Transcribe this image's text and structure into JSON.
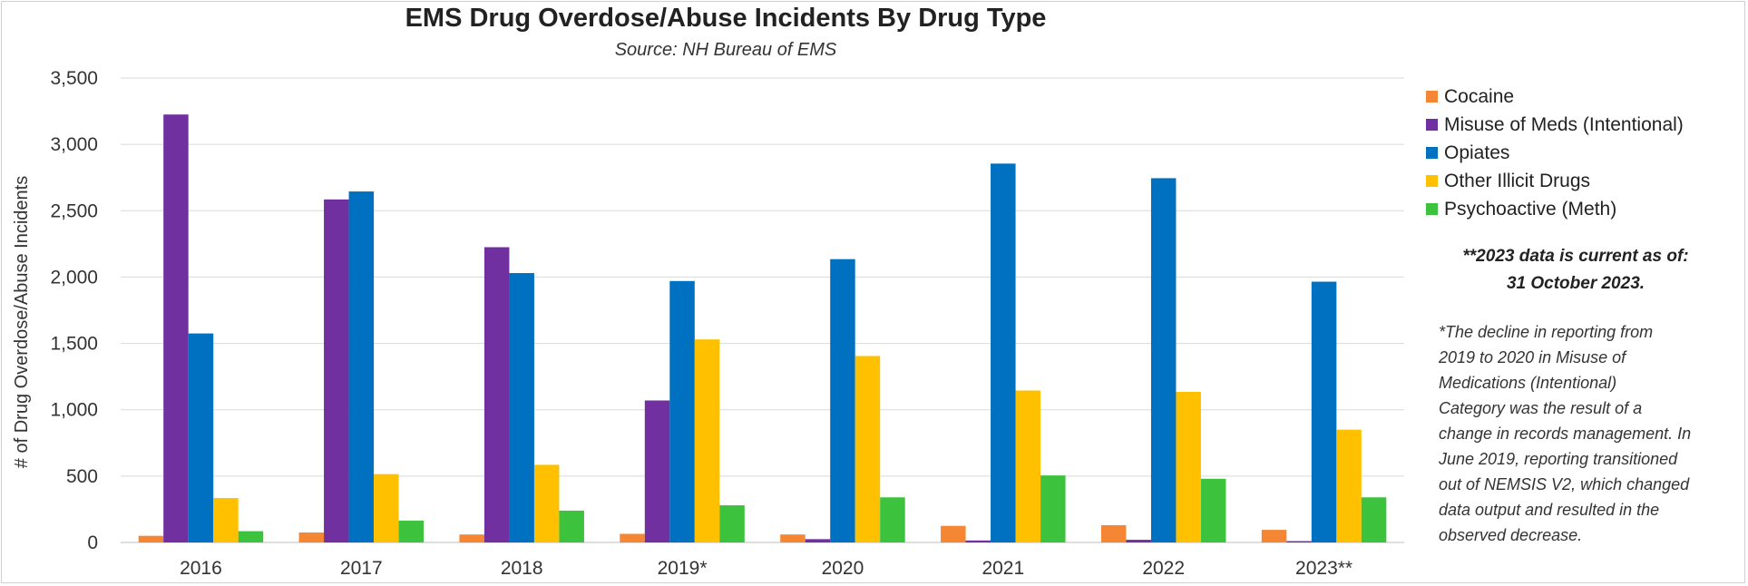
{
  "chart_data": {
    "type": "bar",
    "title": "EMS Drug Overdose/Abuse Incidents By Drug Type",
    "subtitle": "Source: NH Bureau of EMS",
    "ylabel": "# of Drug Overdose/Abuse Incidents",
    "xlabel": "",
    "ylim": [
      0,
      3500
    ],
    "yticks": [
      "0",
      "500",
      "1,000",
      "1,500",
      "2,000",
      "2,500",
      "3,000",
      "3,500"
    ],
    "ytick_values": [
      0,
      500,
      1000,
      1500,
      2000,
      2500,
      3000,
      3500
    ],
    "grid": true,
    "legend_position": "right",
    "categories": [
      "2016",
      "2017",
      "2018",
      "2019*",
      "2020",
      "2021",
      "2022",
      "2023**"
    ],
    "series": [
      {
        "name": "Cocaine",
        "color": "#F58634",
        "values": [
          50,
          75,
          60,
          65,
          60,
          125,
          130,
          95
        ]
      },
      {
        "name": "Misuse of Meds (Intentional)",
        "color": "#7030A0",
        "values": [
          3225,
          2585,
          2225,
          1070,
          25,
          15,
          20,
          10
        ]
      },
      {
        "name": "Opiates",
        "color": "#0070C0",
        "values": [
          1575,
          2645,
          2030,
          1970,
          2135,
          2855,
          2745,
          1965
        ]
      },
      {
        "name": "Other Illicit Drugs",
        "color": "#FFC000",
        "values": [
          335,
          515,
          585,
          1530,
          1405,
          1145,
          1135,
          850
        ]
      },
      {
        "name": "Psychoactive (Meth)",
        "color": "#3DC23D",
        "values": [
          85,
          165,
          240,
          280,
          340,
          505,
          480,
          340
        ]
      }
    ]
  },
  "notes": {
    "current_line1": "**2023 data is current as of:",
    "current_line2": "31 October 2023.",
    "decline_lines": [
      "*The decline in reporting from",
      "2019 to 2020 in Misuse of",
      "Medications (Intentional)",
      "Category was the result of a",
      "change in records management. In",
      "June 2019, reporting transitioned",
      "out of NEMSIS V2, which changed",
      "data output and resulted in the",
      "observed decrease."
    ]
  }
}
